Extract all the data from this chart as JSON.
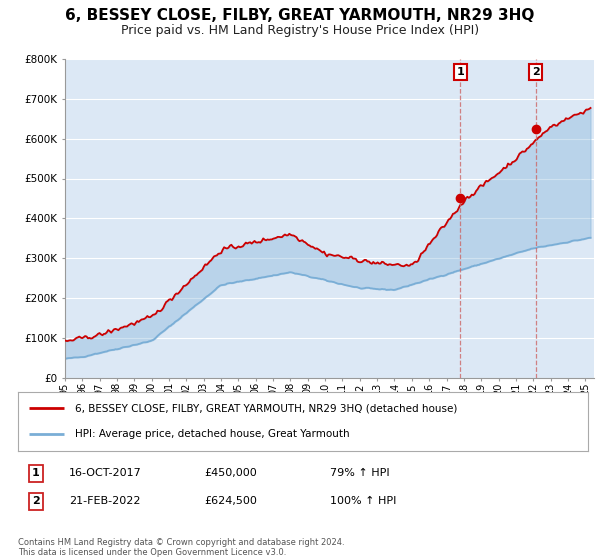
{
  "title": "6, BESSEY CLOSE, FILBY, GREAT YARMOUTH, NR29 3HQ",
  "subtitle": "Price paid vs. HM Land Registry's House Price Index (HPI)",
  "title_fontsize": 11,
  "subtitle_fontsize": 9,
  "ylim": [
    0,
    800000
  ],
  "xlim_start": 1995.0,
  "xlim_end": 2025.5,
  "background_color": "#ffffff",
  "plot_bg_color": "#dce8f5",
  "grid_color": "#ffffff",
  "red_color": "#cc0000",
  "blue_color": "#7aaed6",
  "fill_alpha": 0.35,
  "sale1_x": 2017.79,
  "sale1_y": 450000,
  "sale2_x": 2022.13,
  "sale2_y": 624500,
  "legend_label_red": "6, BESSEY CLOSE, FILBY, GREAT YARMOUTH, NR29 3HQ (detached house)",
  "legend_label_blue": "HPI: Average price, detached house, Great Yarmouth",
  "annot1_label": "1",
  "annot1_date": "16-OCT-2017",
  "annot1_price": "£450,000",
  "annot1_hpi": "79% ↑ HPI",
  "annot2_label": "2",
  "annot2_date": "21-FEB-2022",
  "annot2_price": "£624,500",
  "annot2_hpi": "100% ↑ HPI",
  "footer": "Contains HM Land Registry data © Crown copyright and database right 2024.\nThis data is licensed under the Open Government Licence v3.0.",
  "yticks": [
    0,
    100000,
    200000,
    300000,
    400000,
    500000,
    600000,
    700000,
    800000
  ],
  "ytick_labels": [
    "£0",
    "£100K",
    "£200K",
    "£300K",
    "£400K",
    "£500K",
    "£600K",
    "£700K",
    "£800K"
  ]
}
